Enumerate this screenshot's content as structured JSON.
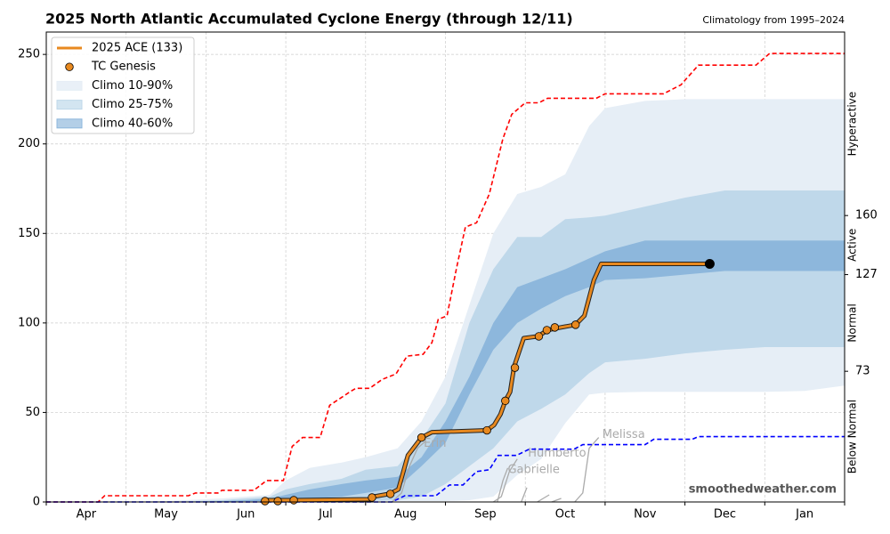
{
  "chart_data": {
    "type": "line",
    "title": "2025 North Atlantic Accumulated Cyclone Energy (through 12/11)",
    "subtitle": "Climatology from 1995–2024",
    "watermark": "smoothedweather.com",
    "categories": [
      "Apr",
      "May",
      "Jun",
      "Jul",
      "Aug",
      "Sep",
      "Oct",
      "Nov",
      "Dec",
      "Jan"
    ],
    "ylim": [
      0,
      262.5
    ],
    "yticks": [
      0,
      50,
      100,
      150,
      200,
      250
    ],
    "y2lim": [
      0,
      262.5
    ],
    "y2ticks": [
      73,
      127,
      160
    ],
    "y2_categories": [
      "Below Normal",
      "Normal",
      "Active",
      "Hyperactive"
    ],
    "grid": true,
    "legend": "upper left",
    "band_x": [
      0,
      1.5,
      2.2,
      2.5,
      2.8,
      3.0,
      3.3,
      3.7,
      4.0,
      4.4,
      4.7,
      5.0,
      5.3,
      5.6,
      5.9,
      6.2,
      6.5,
      6.8,
      7.0,
      7.5,
      8.0,
      8.5,
      9.0,
      9.5,
      10
    ],
    "bands": [
      {
        "name": "Climo 10-90%",
        "color": "#e6eef6",
        "legend_color": "#e9f0f7",
        "lower": [
          0,
          0,
          0.5,
          0.5,
          0.5,
          0.5,
          0.5,
          0.5,
          0.5,
          0.5,
          0.5,
          0.5,
          1,
          3,
          15,
          24,
          44,
          60,
          61,
          61.5,
          61.5,
          61.5,
          61.5,
          62,
          65
        ],
        "upper": [
          0,
          0.5,
          2,
          3,
          4,
          12,
          19,
          22,
          25,
          30,
          45,
          70,
          110,
          150,
          172,
          176,
          183,
          210,
          220,
          224,
          225,
          225,
          225,
          225,
          225
        ]
      },
      {
        "name": "Climo 25-75%",
        "color": "#bfd8ea",
        "legend_color": "#d3e5f1",
        "lower": [
          0,
          0,
          0,
          0,
          0,
          0,
          0,
          0,
          0.5,
          1,
          3,
          10,
          20,
          30,
          45,
          52,
          60,
          72,
          78,
          80,
          83,
          85,
          86.5,
          86.5,
          86.5
        ],
        "upper": [
          0,
          0,
          1,
          2,
          3,
          7,
          10,
          13,
          18,
          20,
          35,
          55,
          100,
          130,
          148,
          148,
          158,
          159,
          160,
          165,
          170,
          174,
          174,
          174,
          174
        ]
      },
      {
        "name": "Climo 40-60%",
        "color": "#8db7dc",
        "legend_color": "#b3cfe7",
        "lower": [
          0,
          0,
          0,
          0.5,
          0.5,
          1,
          2,
          3,
          5,
          8,
          20,
          33,
          60,
          85,
          100,
          108,
          115,
          120,
          124,
          125,
          127,
          129,
          129,
          129,
          129
        ],
        "upper": [
          0,
          0,
          0.5,
          1,
          2,
          4,
          7,
          10,
          12,
          14,
          25,
          45,
          70,
          100,
          120,
          125,
          130,
          136,
          140,
          146,
          146,
          146,
          146,
          146,
          146
        ]
      }
    ],
    "series": [
      {
        "color": "#ff0000",
        "style": "dashed",
        "x": [
          0,
          0.65,
          0.73,
          1.78,
          1.87,
          2.15,
          2.2,
          2.6,
          2.76,
          2.97,
          3.08,
          3.21,
          3.43,
          3.55,
          3.82,
          3.88,
          4.05,
          4.21,
          4.38,
          4.52,
          4.72,
          4.83,
          4.91,
          5.02,
          5.14,
          5.25,
          5.39,
          5.55,
          5.72,
          5.83,
          6.0,
          6.17,
          6.28,
          6.89,
          7.0,
          7.73,
          7.95,
          8.17,
          8.89,
          9.06,
          10
        ],
        "values": [
          0,
          0,
          3.5,
          3.5,
          5,
          5,
          6.5,
          6.5,
          12,
          12,
          31,
          36,
          36,
          54,
          62,
          63.5,
          63.5,
          68.5,
          71.5,
          81.5,
          82.5,
          89,
          102,
          104,
          131,
          153.5,
          156,
          172,
          203,
          216.5,
          223,
          223,
          225.5,
          225.5,
          228,
          228,
          233,
          244,
          244,
          250.5,
          250.5
        ]
      },
      {
        "color": "#0000ff",
        "style": "dashed",
        "x": [
          0,
          4.33,
          4.49,
          4.88,
          5.05,
          5.22,
          5.39,
          5.55,
          5.66,
          5.89,
          6.05,
          6.61,
          6.72,
          7.5,
          7.61,
          8.09,
          8.17,
          10
        ],
        "values": [
          0,
          0,
          3.5,
          3.5,
          9.5,
          9.5,
          17,
          18,
          26,
          26,
          29.5,
          29.5,
          32,
          32,
          35,
          35,
          36.5,
          36.5
        ]
      },
      {
        "name": "2025 ACE (133)",
        "color": "#e8891f",
        "style": "solid",
        "x": [
          2.72,
          3.1,
          4.08,
          4.1,
          4.3,
          4.41,
          4.53,
          4.7,
          4.83,
          5.52,
          5.61,
          5.69,
          5.75,
          5.81,
          5.86,
          5.98,
          6.16,
          6.28,
          6.38,
          6.63,
          6.74,
          6.86,
          6.95,
          8.31
        ],
        "values": [
          1,
          1,
          1.5,
          3,
          4.5,
          7,
          26,
          36,
          39,
          40,
          43,
          49,
          56.5,
          61.5,
          75.5,
          91.5,
          92.5,
          96,
          97,
          99,
          104,
          124,
          133,
          133
        ]
      },
      {
        "name": "TC Genesis",
        "color": "#e8891f",
        "style": "points",
        "x": [
          2.74,
          2.9,
          3.1,
          4.08,
          4.31,
          4.7,
          5.52,
          5.75,
          5.87,
          6.17,
          6.27,
          6.37,
          6.63
        ],
        "values": [
          0.5,
          0.5,
          1,
          2.5,
          4.5,
          36,
          40,
          56.5,
          75,
          92.5,
          96,
          97.5,
          99
        ]
      }
    ],
    "storms": [
      {
        "label": "Erin",
        "x": [
          4.33,
          4.45,
          4.55,
          4.65,
          4.75
        ],
        "values": [
          0,
          5,
          20,
          30,
          34
        ]
      },
      {
        "label": "Humberto",
        "x": [
          5.6,
          5.7,
          5.8,
          5.9
        ],
        "values": [
          0,
          3,
          17,
          24
        ]
      },
      {
        "label": "Gabrielle",
        "x": [
          5.65,
          5.72,
          5.78
        ],
        "values": [
          0,
          12,
          19
        ]
      },
      {
        "label": "Melissa",
        "x": [
          6.62,
          6.72,
          6.8,
          6.92
        ],
        "values": [
          0,
          5,
          30,
          36
        ]
      },
      {
        "x": [
          5.95,
          6.02
        ],
        "values": [
          0,
          8
        ]
      },
      {
        "x": [
          6.15,
          6.3
        ],
        "values": [
          0,
          4
        ]
      },
      {
        "x": [
          6.33,
          6.45
        ],
        "values": [
          0,
          2
        ]
      }
    ]
  }
}
